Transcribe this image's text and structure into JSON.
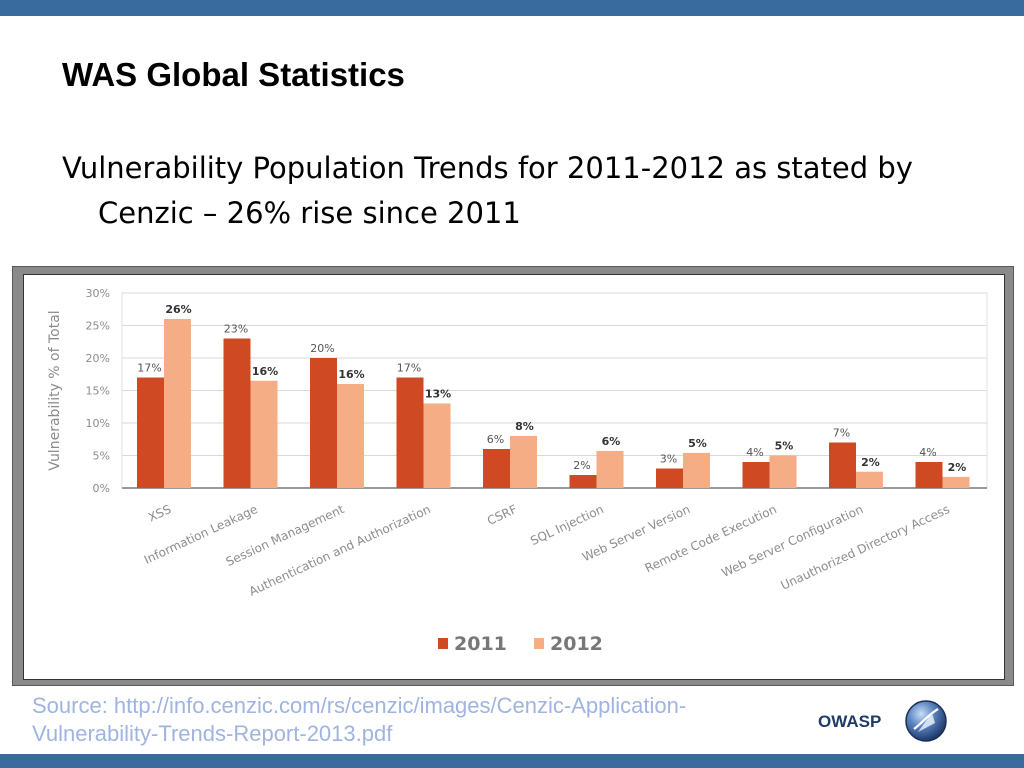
{
  "slide": {
    "title": "WAS Global Statistics",
    "bullet": "Vulnerability Population Trends for 2011-2012 as stated by Cenzic – 26% rise since 2011",
    "source": "Source: http://info.cenzic.com/rs/cenzic/images/Cenzic-Application-Vulnerability-Trends-Report-2013.pdf",
    "logo_text": "OWASP",
    "logo_icon": "owasp-globe-icon"
  },
  "colors": {
    "bar_bar": "#3a6b9e",
    "series_2011": "#cf4a23",
    "series_2012": "#f4ad84",
    "grid": "#d9d9d9",
    "axis_text": "#8c8c8c"
  },
  "chart_data": {
    "type": "bar",
    "title": "",
    "ylabel": "Vulnerability % of Total",
    "xlabel": "",
    "ylim": [
      0,
      30
    ],
    "yticks": [
      "0%",
      "5%",
      "10%",
      "15%",
      "20%",
      "25%",
      "30%"
    ],
    "grid": true,
    "legend_position": "bottom-center",
    "categories": [
      "XSS",
      "Information Leakage",
      "Session Management",
      "Authentication and Authorization",
      "CSRF",
      "SQL Injection",
      "Web Server Version",
      "Remote Code Execution",
      "Web Server Configuration",
      "Unauthorized Directory Access"
    ],
    "series": [
      {
        "name": "2011",
        "values": [
          17,
          23,
          20,
          17,
          6,
          2,
          3,
          4,
          7,
          4
        ],
        "labels": [
          "17%",
          "23%",
          "20%",
          "17%",
          "6%",
          "2%",
          "3%",
          "4%",
          "7%",
          "4%"
        ]
      },
      {
        "name": "2012",
        "values": [
          26,
          16.5,
          16,
          13,
          8,
          5.7,
          5.4,
          5,
          2.5,
          1.7
        ],
        "labels": [
          "26%",
          "16%",
          "16%",
          "13%",
          "8%",
          "6%",
          "5%",
          "5%",
          "2%",
          "2%"
        ]
      }
    ]
  }
}
